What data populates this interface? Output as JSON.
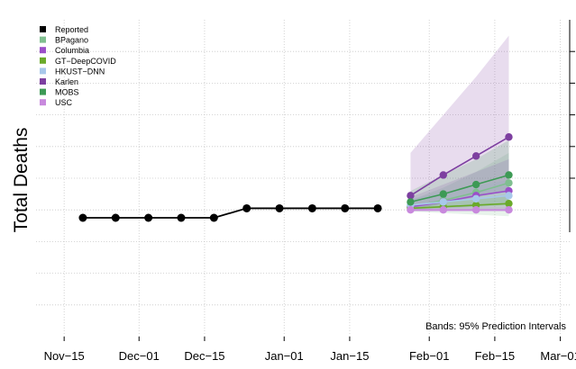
{
  "chart_data": {
    "type": "line",
    "title": "",
    "xlabel": "",
    "ylabel": "Total Deaths",
    "annotation": "Bands: 95% Prediction Intervals",
    "grid": true,
    "legend_position": "top-left",
    "x_ticks": [
      "Nov−15",
      "Dec−01",
      "Dec−15",
      "Jan−01",
      "Jan−15",
      "Feb−01",
      "Feb−15",
      "Mar−01"
    ],
    "x_tick_days": [
      0,
      16,
      30,
      47,
      61,
      78,
      92,
      106
    ],
    "x_range_days": [
      -6,
      108
    ],
    "y_range": [
      0,
      10
    ],
    "reported": {
      "name": "Reported",
      "color": "#000000",
      "x_days": [
        4,
        11,
        18,
        25,
        32,
        39,
        46,
        53,
        60,
        67
      ],
      "values": [
        3.75,
        3.75,
        3.75,
        3.75,
        3.75,
        4.05,
        4.05,
        4.05,
        4.05,
        4.05
      ]
    },
    "forecasts": [
      {
        "name": "BPagano",
        "color": "#7fbf8f",
        "x_days": [
          74,
          81,
          88,
          95
        ],
        "values": [
          4.1,
          4.3,
          4.55,
          4.85
        ],
        "lower": [
          3.95,
          3.9,
          3.85,
          3.8
        ],
        "upper": [
          4.3,
          4.7,
          5.2,
          5.8
        ]
      },
      {
        "name": "Columbia",
        "color": "#9b4fc9",
        "x_days": [
          74,
          81,
          88,
          95
        ],
        "values": [
          4.1,
          4.25,
          4.45,
          4.6
        ],
        "lower": [
          3.95,
          3.95,
          3.95,
          3.95
        ],
        "upper": [
          4.4,
          4.8,
          5.2,
          5.6
        ]
      },
      {
        "name": "GT−DeepCOVID",
        "color": "#6aaa2a",
        "x_days": [
          74,
          81,
          88,
          95
        ],
        "values": [
          4.05,
          4.1,
          4.15,
          4.2
        ],
        "lower": [
          3.98,
          3.98,
          3.98,
          3.98
        ],
        "upper": [
          4.15,
          4.25,
          4.35,
          4.45
        ]
      },
      {
        "name": "HKUST−DNN",
        "color": "#a8c8ea",
        "x_days": [
          74,
          81,
          88,
          95
        ],
        "values": [
          4.15,
          4.25,
          4.35,
          4.45
        ],
        "lower": [
          4.0,
          4.0,
          4.0,
          4.0
        ],
        "upper": [
          4.35,
          4.55,
          4.75,
          4.95
        ]
      },
      {
        "name": "Karlen",
        "color": "#7d3fa0",
        "x_days": [
          74,
          81,
          88,
          95
        ],
        "values": [
          4.45,
          5.1,
          5.7,
          6.3
        ],
        "lower": [
          4.0,
          4.2,
          4.4,
          4.6
        ],
        "upper": [
          5.8,
          7.0,
          8.2,
          9.5
        ]
      },
      {
        "name": "MOBS",
        "color": "#3d9a55",
        "x_days": [
          74,
          81,
          88,
          95
        ],
        "values": [
          4.25,
          4.5,
          4.8,
          5.1
        ],
        "lower": [
          4.0,
          4.05,
          4.1,
          4.15
        ],
        "upper": [
          4.6,
          5.1,
          5.6,
          6.2
        ]
      },
      {
        "name": "USC",
        "color": "#c889dd",
        "x_days": [
          74,
          81,
          88,
          95
        ],
        "values": [
          4.0,
          4.0,
          4.0,
          4.0
        ],
        "lower": [
          3.95,
          3.95,
          3.95,
          3.95
        ],
        "upper": [
          4.1,
          4.1,
          4.1,
          4.1
        ]
      }
    ]
  }
}
